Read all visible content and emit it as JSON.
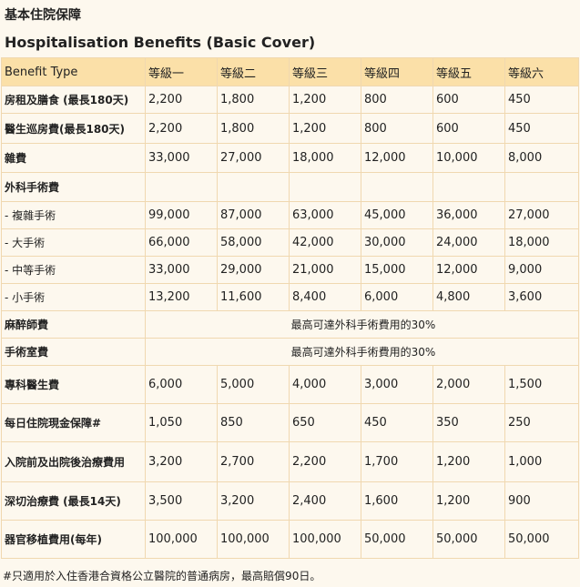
{
  "title_zh": "基本住院保障",
  "title_en": "Hospitalisation Benefits (Basic Cover)",
  "table": {
    "headers": [
      "Benefit Type",
      "等級一",
      "等級二",
      "等級三",
      "等級四",
      "等級五",
      "等級六"
    ],
    "rows": [
      {
        "label": "房租及膳食 (最長180天)",
        "values": [
          "2,200",
          "1,800",
          "1,200",
          "800",
          "600",
          "450"
        ]
      },
      {
        "label": "醫生巡房費(最長180天)",
        "values": [
          "2,200",
          "1,800",
          "1,200",
          "800",
          "600",
          "450"
        ]
      },
      {
        "label": "雜費",
        "values": [
          "33,000",
          "27,000",
          "18,000",
          "12,000",
          "10,000",
          "8,000"
        ]
      },
      {
        "label": "外科手術費",
        "values": [
          "",
          "",
          "",
          "",
          "",
          ""
        ]
      },
      {
        "label": "- 複雜手術",
        "values": [
          "99,000",
          "87,000",
          "63,000",
          "45,000",
          "36,000",
          "27,000"
        ]
      },
      {
        "label": "- 大手術",
        "values": [
          "66,000",
          "58,000",
          "42,000",
          "30,000",
          "24,000",
          "18,000"
        ]
      },
      {
        "label": "- 中等手術",
        "values": [
          "33,000",
          "29,000",
          "21,000",
          "15,000",
          "12,000",
          "9,000"
        ]
      },
      {
        "label": "- 小手術",
        "values": [
          "13,200",
          "11,600",
          "8,400",
          "6,000",
          "4,800",
          "3,600"
        ]
      },
      {
        "label": "麻醉師費",
        "merged": "最高可達外科手術費用的30%"
      },
      {
        "label": "手術室費",
        "merged": "最高可達外科手術費用的30%"
      },
      {
        "label": "專科醫生費",
        "values": [
          "6,000",
          "5,000",
          "4,000",
          "3,000",
          "2,000",
          "1,500"
        ]
      },
      {
        "label": "每日住院現金保障#",
        "values": [
          "1,050",
          "850",
          "650",
          "450",
          "350",
          "250"
        ]
      },
      {
        "label": "入院前及出院後治療費用",
        "values": [
          "3,200",
          "2,700",
          "2,200",
          "1,700",
          "1,200",
          "1,000"
        ]
      },
      {
        "label": "深切治療費 (最長14天)",
        "values": [
          "3,500",
          "3,200",
          "2,400",
          "1,600",
          "1,200",
          "900"
        ]
      },
      {
        "label": "器官移植費用(每年)",
        "values": [
          "100,000",
          "100,000",
          "100,000",
          "50,000",
          "50,000",
          "50,000"
        ]
      }
    ]
  },
  "footnote": "#只適用於入住香港合資格公立醫院的普通病房，最高賠償90日。"
}
